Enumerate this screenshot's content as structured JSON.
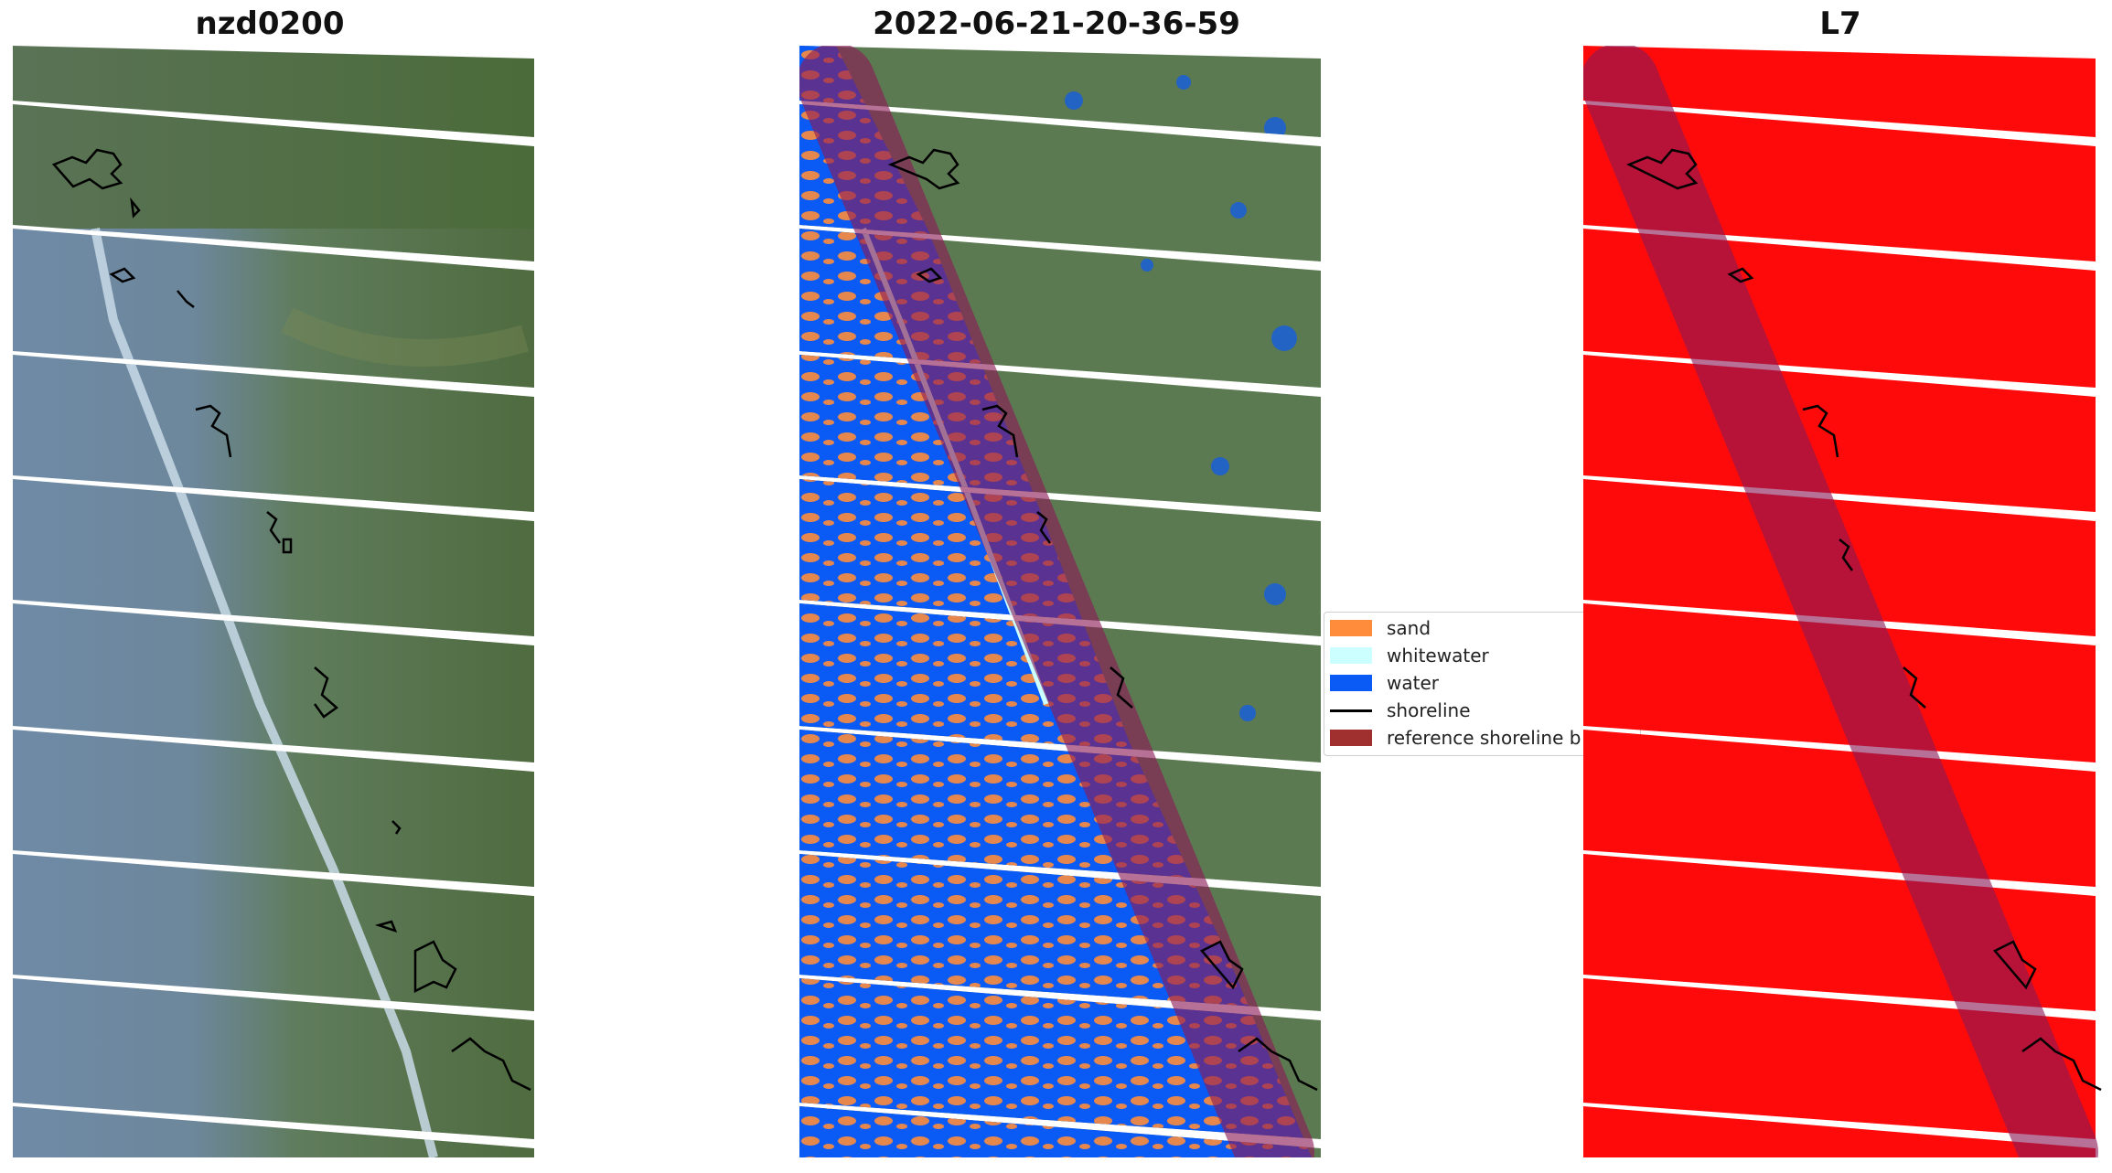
{
  "panels": [
    {
      "title": "nzd0200"
    },
    {
      "title": "2022-06-21-20-36-59"
    },
    {
      "title": "L7"
    }
  ],
  "legend": {
    "items": [
      {
        "label": "sand",
        "color": "#ff8c3a",
        "kind": "swatch"
      },
      {
        "label": "whitewater",
        "color": "#ccffff",
        "kind": "swatch"
      },
      {
        "label": "water",
        "color": "#0a5af5",
        "kind": "swatch"
      },
      {
        "label": "shoreline",
        "color": "#000000",
        "kind": "line"
      },
      {
        "label": "reference shoreline b",
        "color": "#a03030",
        "kind": "swatch"
      }
    ]
  },
  "colors": {
    "imagery_land": "#5c7a52",
    "imagery_water": "#6f8aa6",
    "water_class": "#0a5af5",
    "sand_class": "#ff8c3a",
    "cloud_mask": "#ff0a0a",
    "reference_buffer": "#8b1a55"
  }
}
